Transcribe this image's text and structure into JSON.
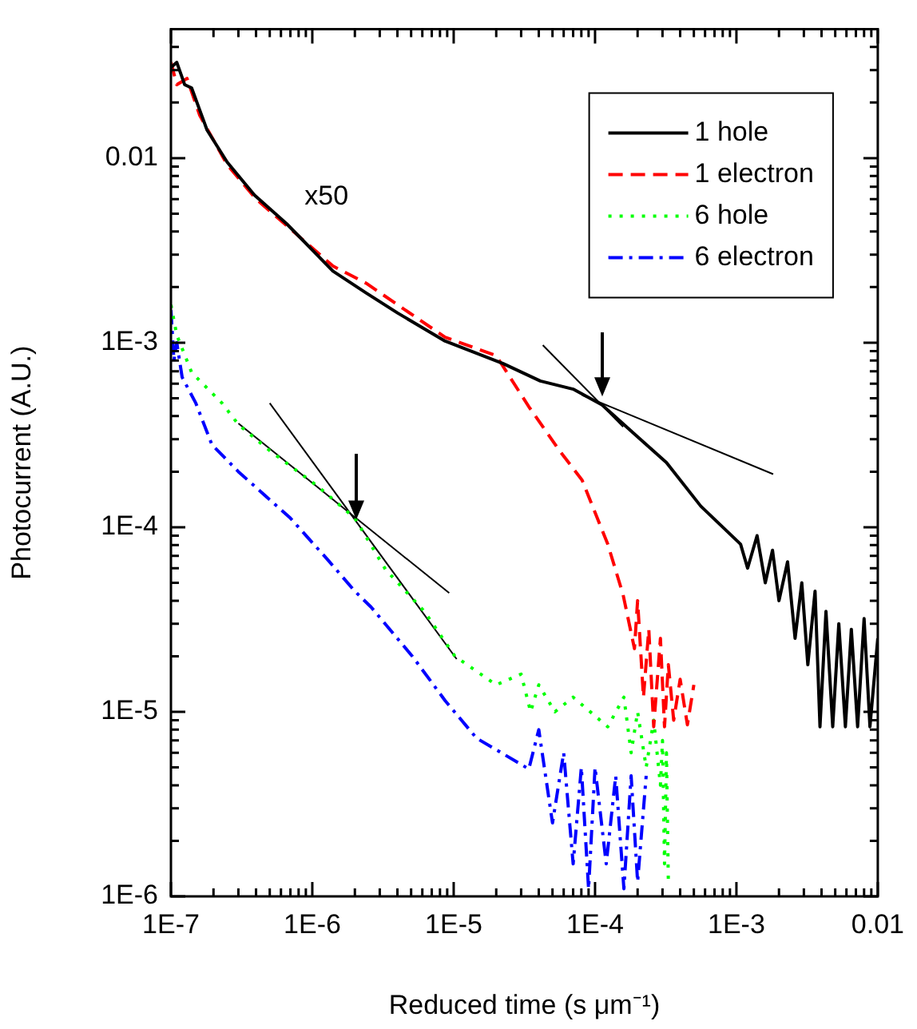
{
  "chart_data": {
    "type": "line",
    "xlabel": "Reduced time (s μm⁻¹)",
    "ylabel": "Photocurrent (A.U.)",
    "log": "xy",
    "grid": false,
    "legend": "top right",
    "marker": "none",
    "xlim": [
      1e-07,
      0.01
    ],
    "ylim": [
      1e-06,
      0.05
    ],
    "xticks": [
      {
        "value": 1e-07,
        "label": "1E-7"
      },
      {
        "value": 2e-07,
        "label": null
      },
      {
        "value": 3e-07,
        "label": null
      },
      {
        "value": 4e-07,
        "label": null
      },
      {
        "value": 5e-07,
        "label": null
      },
      {
        "value": 6e-07,
        "label": null
      },
      {
        "value": 7e-07,
        "label": null
      },
      {
        "value": 8e-07,
        "label": null
      },
      {
        "value": 9e-07,
        "label": null
      },
      {
        "value": 1e-06,
        "label": "1E-6"
      },
      {
        "value": 2e-06,
        "label": null
      },
      {
        "value": 3e-06,
        "label": null
      },
      {
        "value": 4e-06,
        "label": null
      },
      {
        "value": 5e-06,
        "label": null
      },
      {
        "value": 6e-06,
        "label": null
      },
      {
        "value": 7e-06,
        "label": null
      },
      {
        "value": 8e-06,
        "label": null
      },
      {
        "value": 9e-06,
        "label": null
      },
      {
        "value": 1e-05,
        "label": "1E-5"
      },
      {
        "value": 2e-05,
        "label": null
      },
      {
        "value": 3e-05,
        "label": null
      },
      {
        "value": 4e-05,
        "label": null
      },
      {
        "value": 5e-05,
        "label": null
      },
      {
        "value": 6e-05,
        "label": null
      },
      {
        "value": 7e-05,
        "label": null
      },
      {
        "value": 8e-05,
        "label": null
      },
      {
        "value": 9e-05,
        "label": null
      },
      {
        "value": 0.0001,
        "label": "1E-4"
      },
      {
        "value": 0.0002,
        "label": null
      },
      {
        "value": 0.0003,
        "label": null
      },
      {
        "value": 0.0004,
        "label": null
      },
      {
        "value": 0.0005,
        "label": null
      },
      {
        "value": 0.0006,
        "label": null
      },
      {
        "value": 0.0007,
        "label": null
      },
      {
        "value": 0.0008,
        "label": null
      },
      {
        "value": 0.0009,
        "label": null
      },
      {
        "value": 0.001,
        "label": "1E-3"
      },
      {
        "value": 0.002,
        "label": null
      },
      {
        "value": 0.003,
        "label": null
      },
      {
        "value": 0.004,
        "label": null
      },
      {
        "value": 0.005,
        "label": null
      },
      {
        "value": 0.006,
        "label": null
      },
      {
        "value": 0.007,
        "label": null
      },
      {
        "value": 0.008,
        "label": null
      },
      {
        "value": 0.009,
        "label": null
      },
      {
        "value": 0.01,
        "label": "0.01"
      }
    ],
    "yticks": [
      {
        "value": 1e-06,
        "label": "1E-6"
      },
      {
        "value": 2e-06,
        "label": null
      },
      {
        "value": 3e-06,
        "label": null
      },
      {
        "value": 4e-06,
        "label": null
      },
      {
        "value": 5e-06,
        "label": null
      },
      {
        "value": 6e-06,
        "label": null
      },
      {
        "value": 7e-06,
        "label": null
      },
      {
        "value": 8e-06,
        "label": null
      },
      {
        "value": 9e-06,
        "label": null
      },
      {
        "value": 1e-05,
        "label": "1E-5"
      },
      {
        "value": 2e-05,
        "label": null
      },
      {
        "value": 3e-05,
        "label": null
      },
      {
        "value": 4e-05,
        "label": null
      },
      {
        "value": 5e-05,
        "label": null
      },
      {
        "value": 6e-05,
        "label": null
      },
      {
        "value": 7e-05,
        "label": null
      },
      {
        "value": 8e-05,
        "label": null
      },
      {
        "value": 9e-05,
        "label": null
      },
      {
        "value": 0.0001,
        "label": "1E-4"
      },
      {
        "value": 0.0002,
        "label": null
      },
      {
        "value": 0.0003,
        "label": null
      },
      {
        "value": 0.0004,
        "label": null
      },
      {
        "value": 0.0005,
        "label": null
      },
      {
        "value": 0.0006,
        "label": null
      },
      {
        "value": 0.0007,
        "label": null
      },
      {
        "value": 0.0008,
        "label": null
      },
      {
        "value": 0.0009,
        "label": null
      },
      {
        "value": 0.001,
        "label": "1E-3"
      },
      {
        "value": 0.002,
        "label": null
      },
      {
        "value": 0.003,
        "label": null
      },
      {
        "value": 0.004,
        "label": null
      },
      {
        "value": 0.005,
        "label": null
      },
      {
        "value": 0.006,
        "label": null
      },
      {
        "value": 0.007,
        "label": null
      },
      {
        "value": 0.008,
        "label": null
      },
      {
        "value": 0.009,
        "label": null
      },
      {
        "value": 0.01,
        "label": "0.01"
      },
      {
        "value": 0.02,
        "label": null
      },
      {
        "value": 0.03,
        "label": null
      },
      {
        "value": 0.04,
        "label": null
      }
    ],
    "annotations": [
      "x50"
    ],
    "series": [
      {
        "name": "1 hole",
        "color": "#000000",
        "line_style": "solid",
        "x": [
          1e-07,
          1.1e-07,
          1.25e-07,
          1.4e-07,
          1.8e-07,
          2.5e-07,
          3.9e-07,
          6.6e-07,
          1.4e-06,
          2.4e-06,
          4e-06,
          8.7e-06,
          2.24e-05,
          4.1e-05,
          7e-05,
          0.000112,
          0.00019,
          0.00032,
          0.00056,
          0.00107,
          0.0012,
          0.0014,
          0.0016,
          0.0018,
          0.002,
          0.0023,
          0.0026,
          0.0029,
          0.0032,
          0.0036,
          0.0039,
          0.0043,
          0.0048,
          0.0053,
          0.0059,
          0.0065,
          0.0072,
          0.008,
          0.0088,
          0.01
        ],
        "values": [
          0.031,
          0.033,
          0.025,
          0.024,
          0.0142,
          0.0095,
          0.0063,
          0.0044,
          0.00244,
          0.00186,
          0.00145,
          0.00102,
          0.00077,
          0.00062,
          0.00056,
          0.00046,
          0.00032,
          0.000224,
          0.00013,
          8.1e-05,
          6e-05,
          9e-05,
          5e-05,
          7.5e-05,
          4e-05,
          6.5e-05,
          2.5e-05,
          5e-05,
          1.8e-05,
          4.5e-05,
          8.3e-06,
          3.5e-05,
          8.3e-06,
          3e-05,
          8.3e-06,
          2.8e-05,
          8.3e-06,
          3.2e-05,
          8.3e-06,
          2.5e-05
        ]
      },
      {
        "name": "1 electron",
        "color": "#ff0000",
        "line_style": "dashed",
        "x": [
          1e-07,
          1.1e-07,
          1.3e-07,
          1.6e-07,
          2.5e-07,
          4e-07,
          6.6e-07,
          1.4e-06,
          2.4e-06,
          8.7e-06,
          2e-05,
          3.4e-05,
          5.6e-05,
          8.1e-05,
          0.000123,
          0.000158,
          0.00019,
          0.0002,
          0.00022,
          0.00024,
          0.00026,
          0.00029,
          0.00031,
          0.00033,
          0.00036,
          0.0004,
          0.00045,
          0.0005
        ],
        "values": [
          0.033,
          0.025,
          0.027,
          0.017,
          0.0092,
          0.006,
          0.0043,
          0.0026,
          0.0021,
          0.00107,
          0.00085,
          0.00045,
          0.00026,
          0.00018,
          8.1e-05,
          4.3e-05,
          2.2e-05,
          4e-05,
          1.2e-05,
          2.8e-05,
          8.3e-06,
          2.5e-05,
          8.3e-06,
          1.8e-05,
          9e-06,
          1.5e-05,
          8.5e-06,
          1.4e-05
        ]
      },
      {
        "name": "6 hole",
        "color": "#00ff00",
        "line_style": "dotted",
        "x": [
          1e-07,
          1.1e-07,
          1.4e-07,
          2.3e-07,
          3e-07,
          5e-07,
          1.1e-06,
          2e-06,
          3.3e-06,
          6.2e-06,
          1.02e-05,
          2e-05,
          3e-05,
          3.5e-05,
          4e-05,
          5.2e-05,
          7e-05,
          0.000123,
          0.00016,
          0.00018,
          0.0002,
          0.00023,
          0.00026,
          0.00029,
          0.0003,
          0.00031,
          0.00032,
          0.00033
        ],
        "values": [
          0.0016,
          0.0011,
          0.00069,
          0.00047,
          0.00036,
          0.00026,
          0.000166,
          0.000112,
          5.9e-05,
          3.5e-05,
          2e-05,
          1.4e-05,
          1.6e-05,
          1e-05,
          1.4e-05,
          1e-05,
          1.2e-05,
          8.3e-06,
          1.2e-05,
          6e-06,
          1e-05,
          5e-06,
          9e-06,
          4e-06,
          7e-06,
          1.5e-06,
          6e-06,
          1.2e-06
        ]
      },
      {
        "name": "6 electron",
        "color": "#0000ff",
        "line_style": "dashdot",
        "x": [
          1e-07,
          1.05e-07,
          1.1e-07,
          1.2e-07,
          1.5e-07,
          1.95e-07,
          3e-07,
          7e-07,
          1.3e-06,
          2e-06,
          2.6e-06,
          5.1e-06,
          8.7e-06,
          1.45e-05,
          3.4e-05,
          4e-05,
          5e-05,
          6e-05,
          7e-05,
          8e-05,
          9e-05,
          0.0001,
          0.00012,
          0.00014,
          0.00016,
          0.00018,
          0.0002,
          0.00023
        ],
        "values": [
          0.0015,
          0.0008,
          0.001,
          0.00065,
          0.00047,
          0.00028,
          0.0002,
          0.000112,
          6.6e-05,
          4.5e-05,
          3.7e-05,
          2e-05,
          1.15e-05,
          7.2e-06,
          4.9e-06,
          8e-06,
          2.5e-06,
          6e-06,
          1.5e-06,
          5e-06,
          1.1e-06,
          5e-06,
          1.5e-06,
          4.5e-06,
          1.1e-06,
          4.5e-06,
          1.2e-06,
          4.5e-06
        ]
      },
      {
        "type": "line",
        "color": "#000000",
        "line_style": "solid",
        "x": [
          4.27e-05,
          0.000158
        ],
        "values": [
          0.00097,
          0.00035
        ]
      },
      {
        "type": "line",
        "color": "#000000",
        "line_style": "solid",
        "x": [
          8.1e-05,
          0.00182
        ],
        "values": [
          0.00052,
          0.000194
        ]
      },
      {
        "type": "line",
        "color": "#000000",
        "line_style": "solid",
        "x": [
          3e-07,
          9.3e-06
        ],
        "values": [
          0.000365,
          4.4e-05
        ]
      },
      {
        "type": "line",
        "color": "#000000",
        "line_style": "solid",
        "x": [
          5e-07,
          1.05e-05
        ],
        "values": [
          0.00047,
          1.93e-05
        ]
      }
    ]
  }
}
